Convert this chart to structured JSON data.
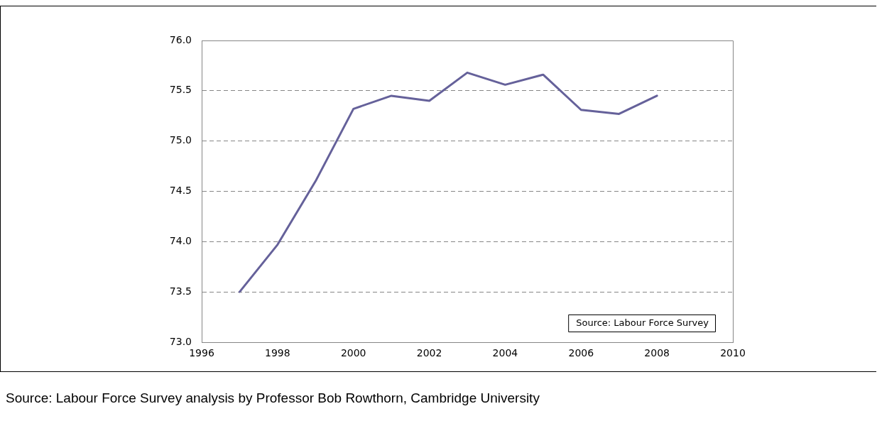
{
  "chart_data": {
    "type": "line",
    "x": [
      1997,
      1998,
      1999,
      2000,
      2001,
      2002,
      2003,
      2004,
      2005,
      2006,
      2007,
      2008
    ],
    "series": [
      {
        "color": "#65619a",
        "values": [
          73.5,
          73.97,
          74.6,
          75.32,
          75.45,
          75.4,
          75.68,
          75.56,
          75.66,
          75.31,
          75.27,
          75.45
        ]
      }
    ],
    "xlim": [
      1996,
      2010
    ],
    "xticks": [
      1996,
      1998,
      2000,
      2002,
      2004,
      2006,
      2008,
      2010
    ],
    "ylim": [
      73.0,
      76.0
    ],
    "yticks": [
      {
        "value": 73.0,
        "label": "73.0"
      },
      {
        "value": 73.5,
        "label": "73.5"
      },
      {
        "value": 74.0,
        "label": "74.0"
      },
      {
        "value": 74.5,
        "label": "74.5"
      },
      {
        "value": 75.0,
        "label": "75.0"
      },
      {
        "value": 75.5,
        "label": "75.5"
      },
      {
        "value": 76.0,
        "label": "76.0"
      }
    ],
    "grid": "y",
    "legend": false,
    "marker": "none",
    "line_style": "solid",
    "annotations": [
      "Source: Labour Force Survey",
      "Source: Labour Force Survey analysis by Professor Bob Rowthorn, Cambridge University"
    ]
  }
}
